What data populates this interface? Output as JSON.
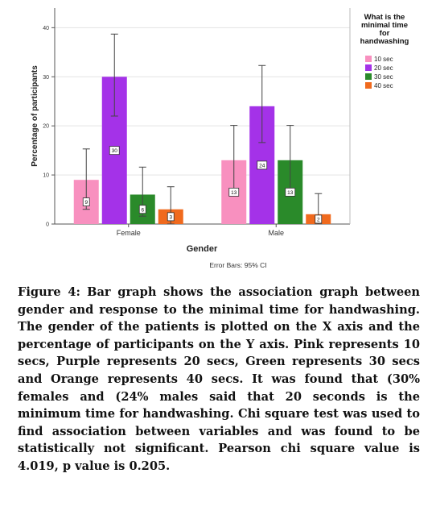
{
  "chart_data": {
    "type": "bar",
    "categories": [
      "Female",
      "Male"
    ],
    "series": [
      {
        "name": "10 sec",
        "color": "#f890bf",
        "values": [
          9,
          13
        ],
        "ci_low": [
          3,
          6
        ],
        "ci_high": [
          15.3,
          20.1
        ],
        "labels": [
          "9",
          "13"
        ]
      },
      {
        "name": "20 sec",
        "color": "#a432e8",
        "values": [
          30,
          24
        ],
        "ci_low": [
          22,
          16.6
        ],
        "ci_high": [
          38.7,
          32.3
        ],
        "labels": [
          "30",
          "24"
        ]
      },
      {
        "name": "30 sec",
        "color": "#2a8a2a",
        "values": [
          6,
          13
        ],
        "ci_low": [
          1.6,
          6
        ],
        "ci_high": [
          11.6,
          20.1
        ],
        "labels": [
          "6",
          "13"
        ]
      },
      {
        "name": "40 sec",
        "color": "#f06a1e",
        "values": [
          3,
          2
        ],
        "ci_low": [
          0,
          0
        ],
        "ci_high": [
          7.6,
          6.2
        ],
        "labels": [
          "3",
          "2"
        ]
      }
    ],
    "xlabel": "Gender",
    "ylabel": "Percentage of participants",
    "ylim": [
      0,
      44
    ],
    "yticks": [
      0,
      10,
      20,
      30,
      40
    ],
    "grid": true,
    "legend_title": "What is the minimal time for handwashing",
    "legend_placement": "right",
    "footnote": "Error Bars: 95% CI"
  },
  "caption": {
    "label": "Figure 4:",
    "text": "Bar graph shows the association graph between gender and response to the minimal time for handwashing. The gender of the patients is plotted on the X axis and the percentage of participants on the Y axis. Pink represents 10 secs, Purple represents 20 secs, Green represents 30 secs and Orange represents 40 secs. It was found that (30% females and (24% males said that 20 seconds is the minimum time for handwashing. Chi square test was used to find association between variables and was found to be statistically not significant. Pearson chi square value is 4.019, p value is 0.205."
  }
}
